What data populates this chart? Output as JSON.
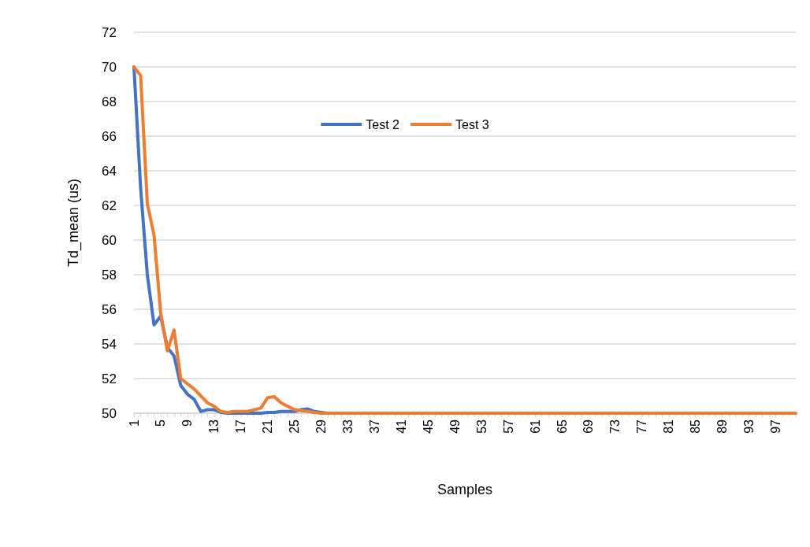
{
  "chart_data": {
    "type": "line",
    "xlabel": "Samples",
    "ylabel": "Td_mean (us)",
    "categories": [
      "1",
      null,
      null,
      null,
      "5",
      null,
      null,
      null,
      "9",
      null,
      null,
      null,
      "13",
      null,
      null,
      null,
      "17",
      null,
      null,
      null,
      "21",
      null,
      null,
      null,
      "25",
      null,
      null,
      null,
      "29",
      null,
      null,
      null,
      "33",
      null,
      null,
      null,
      "37",
      null,
      null,
      null,
      "41",
      null,
      null,
      null,
      "45",
      null,
      null,
      null,
      "49",
      null,
      null,
      null,
      "53",
      null,
      null,
      null,
      "57",
      null,
      null,
      null,
      "61",
      null,
      null,
      null,
      "65",
      null,
      null,
      null,
      "69",
      null,
      null,
      null,
      "73",
      null,
      null,
      null,
      "77",
      null,
      null,
      null,
      "81",
      null,
      null,
      null,
      "85",
      null,
      null,
      null,
      "89",
      null,
      null,
      null,
      "93",
      null,
      null,
      null,
      "97",
      null,
      null,
      null
    ],
    "series": [
      {
        "name": "Test 2",
        "color": "#4472c4",
        "values": [
          70,
          63,
          58,
          55.1,
          55.6,
          53.8,
          53.3,
          51.6,
          51.1,
          50.8,
          50.1,
          50.2,
          50.2,
          50.05,
          50,
          50,
          50,
          50,
          50,
          50,
          50.05,
          50.05,
          50.1,
          50.1,
          50.1,
          50.2,
          50.25,
          50.1,
          50.05,
          50,
          null,
          null,
          null,
          null,
          null,
          null,
          null,
          null,
          null,
          null,
          null,
          null,
          null,
          null,
          null,
          null,
          null,
          null,
          null,
          null,
          null,
          null,
          null,
          null,
          null,
          null,
          null,
          null,
          null,
          null,
          null,
          null,
          null,
          null,
          null,
          null,
          null,
          null,
          null,
          null,
          null,
          null,
          null,
          null,
          null,
          null,
          null,
          null,
          null,
          null,
          null,
          null,
          null,
          null,
          null,
          null,
          null,
          null,
          null,
          null,
          null,
          null,
          null,
          null,
          null,
          null,
          null,
          null,
          null,
          null
        ]
      },
      {
        "name": "Test 3",
        "color": "#ed7d31",
        "values": [
          70,
          69.5,
          62.1,
          60.3,
          55.8,
          53.6,
          54.8,
          52,
          51.7,
          51.4,
          51,
          50.6,
          50.4,
          50.1,
          50.05,
          50.1,
          50.1,
          50.1,
          50.2,
          50.3,
          50.9,
          50.95,
          50.6,
          50.4,
          50.2,
          50.15,
          50.1,
          50.05,
          50,
          50,
          50,
          50,
          50,
          50,
          50,
          50,
          50,
          50,
          50,
          50,
          50,
          50,
          50,
          50,
          50,
          50,
          50,
          50,
          50,
          50,
          50,
          50,
          50,
          50,
          50,
          50,
          50,
          50,
          50,
          50,
          50,
          50,
          50,
          50,
          50,
          50,
          50,
          50,
          50,
          50,
          50,
          50,
          50,
          50,
          50,
          50,
          50,
          50,
          50,
          50,
          50,
          50,
          50,
          50,
          50,
          50,
          50,
          50,
          50,
          50,
          50,
          50,
          50,
          50,
          50,
          50,
          50,
          50,
          50,
          50
        ]
      }
    ],
    "ylim": [
      50,
      72
    ],
    "yticks": [
      50,
      52,
      54,
      56,
      58,
      60,
      62,
      64,
      66,
      68,
      70,
      72
    ],
    "grid": "y",
    "legend": "top",
    "marker": "none",
    "line_style": "solid"
  }
}
